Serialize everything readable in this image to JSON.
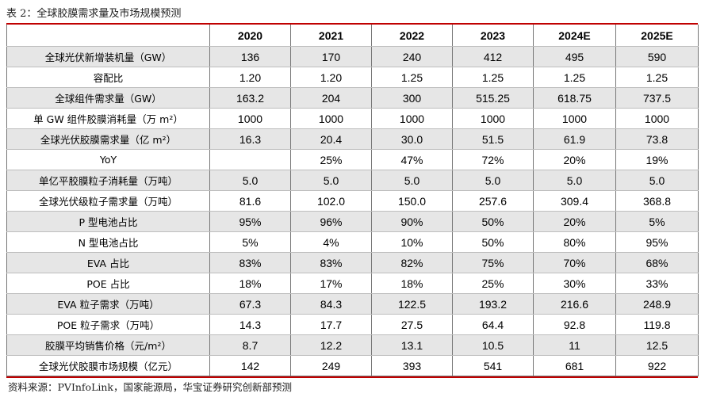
{
  "caption": "表 2：全球胶膜需求量及市场规模预测",
  "table": {
    "corner": "",
    "columns": [
      "2020",
      "2021",
      "2022",
      "2023",
      "2024E",
      "2025E"
    ],
    "rows": [
      {
        "label": "全球光伏新增装机量（GW）",
        "values": [
          "136",
          "170",
          "240",
          "412",
          "495",
          "590"
        ],
        "shaded": true
      },
      {
        "label": "容配比",
        "values": [
          "1.20",
          "1.20",
          "1.25",
          "1.25",
          "1.25",
          "1.25"
        ],
        "shaded": false
      },
      {
        "label": "全球组件需求量（GW）",
        "values": [
          "163.2",
          "204",
          "300",
          "515.25",
          "618.75",
          "737.5"
        ],
        "shaded": true
      },
      {
        "label": "单 GW 组件胶膜消耗量（万 m²）",
        "values": [
          "1000",
          "1000",
          "1000",
          "1000",
          "1000",
          "1000"
        ],
        "shaded": false
      },
      {
        "label": "全球光伏胶膜需求量（亿 m²）",
        "values": [
          "16.3",
          "20.4",
          "30.0",
          "51.5",
          "61.9",
          "73.8"
        ],
        "shaded": true
      },
      {
        "label": "YoY",
        "values": [
          "",
          "25%",
          "47%",
          "72%",
          "20%",
          "19%"
        ],
        "shaded": false
      },
      {
        "label": "单亿平胶膜粒子消耗量（万吨）",
        "values": [
          "5.0",
          "5.0",
          "5.0",
          "5.0",
          "5.0",
          "5.0"
        ],
        "shaded": true
      },
      {
        "label": "全球光伏级粒子需求量（万吨）",
        "values": [
          "81.6",
          "102.0",
          "150.0",
          "257.6",
          "309.4",
          "368.8"
        ],
        "shaded": false
      },
      {
        "label": "P 型电池占比",
        "values": [
          "95%",
          "96%",
          "90%",
          "50%",
          "20%",
          "5%"
        ],
        "shaded": true
      },
      {
        "label": "N 型电池占比",
        "values": [
          "5%",
          "4%",
          "10%",
          "50%",
          "80%",
          "95%"
        ],
        "shaded": false
      },
      {
        "label": "EVA 占比",
        "values": [
          "83%",
          "83%",
          "82%",
          "75%",
          "70%",
          "68%"
        ],
        "shaded": true
      },
      {
        "label": "POE 占比",
        "values": [
          "18%",
          "17%",
          "18%",
          "25%",
          "30%",
          "33%"
        ],
        "shaded": false
      },
      {
        "label": "EVA 粒子需求（万吨）",
        "values": [
          "67.3",
          "84.3",
          "122.5",
          "193.2",
          "216.6",
          "248.9"
        ],
        "shaded": true
      },
      {
        "label": "POE 粒子需求（万吨）",
        "values": [
          "14.3",
          "17.7",
          "27.5",
          "64.4",
          "92.8",
          "119.8"
        ],
        "shaded": false
      },
      {
        "label": "胶膜平均销售价格（元/m²）",
        "values": [
          "8.7",
          "12.2",
          "13.1",
          "10.5",
          "11",
          "12.5"
        ],
        "shaded": true
      },
      {
        "label": "全球光伏胶膜市场规模（亿元）",
        "values": [
          "142",
          "249",
          "393",
          "541",
          "681",
          "922"
        ],
        "shaded": false
      }
    ]
  },
  "source": "资料来源：PVInfoLink，国家能源局，华宝证券研究创新部预测",
  "colors": {
    "accent_rule": "#c00000",
    "shade": "#e6e6e6"
  }
}
